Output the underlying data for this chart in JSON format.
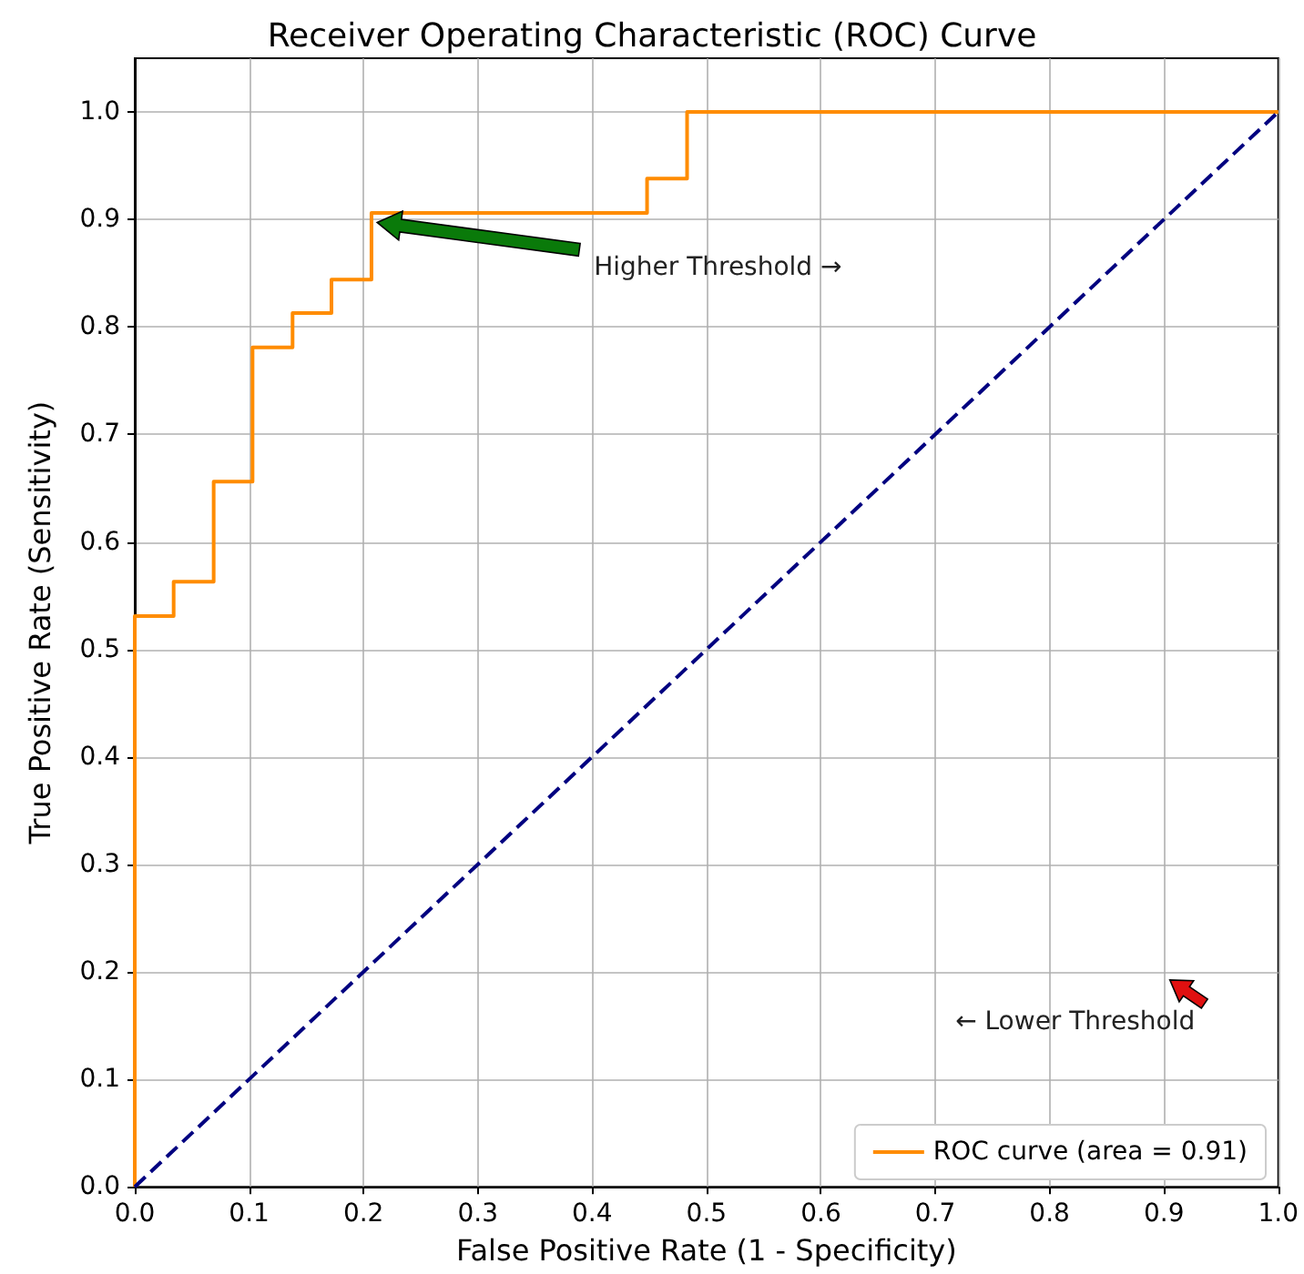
{
  "chart_data": {
    "type": "line",
    "title": "Receiver Operating Characteristic (ROC) Curve",
    "xlabel": "False Positive Rate (1 - Specificity)",
    "ylabel": "True Positive Rate (Sensitivity)",
    "series": [
      {
        "name": "ROC curve (area = 0.91)",
        "color": "#ff8c00",
        "x": [
          0,
          0,
          0.034,
          0.034,
          0.069,
          0.069,
          0.103,
          0.103,
          0.138,
          0.138,
          0.172,
          0.172,
          0.207,
          0.207,
          0.448,
          0.448,
          0.483,
          0.483,
          1
        ],
        "values": [
          0,
          0.531,
          0.531,
          0.563,
          0.563,
          0.656,
          0.656,
          0.781,
          0.781,
          0.813,
          0.813,
          0.844,
          0.844,
          0.906,
          0.906,
          0.938,
          0.938,
          1,
          1
        ]
      },
      {
        "color": "#000080",
        "line_style": "dashed",
        "x": [
          0,
          1
        ],
        "values": [
          0,
          1
        ]
      }
    ],
    "annotations": [
      "Higher Threshold →",
      "← Lower Threshold"
    ],
    "xlim": [
      0,
      1
    ],
    "ylim": [
      0,
      1.05
    ],
    "xticks": [
      {
        "value": 0,
        "label": "0.0"
      },
      0.1,
      0.2,
      0.3,
      0.4,
      0.5,
      0.6,
      0.7,
      0.8,
      0.9,
      {
        "value": 1,
        "label": "1.0"
      }
    ],
    "yticks": [
      {
        "value": 0,
        "label": "0.0"
      },
      0.1,
      0.2,
      0.3,
      0.4,
      0.5,
      0.6,
      0.7,
      0.8,
      0.9,
      {
        "value": 1,
        "label": "1.0"
      }
    ],
    "grid": true,
    "legend": "bottom right",
    "marker": "none",
    "line_style": "solid"
  }
}
